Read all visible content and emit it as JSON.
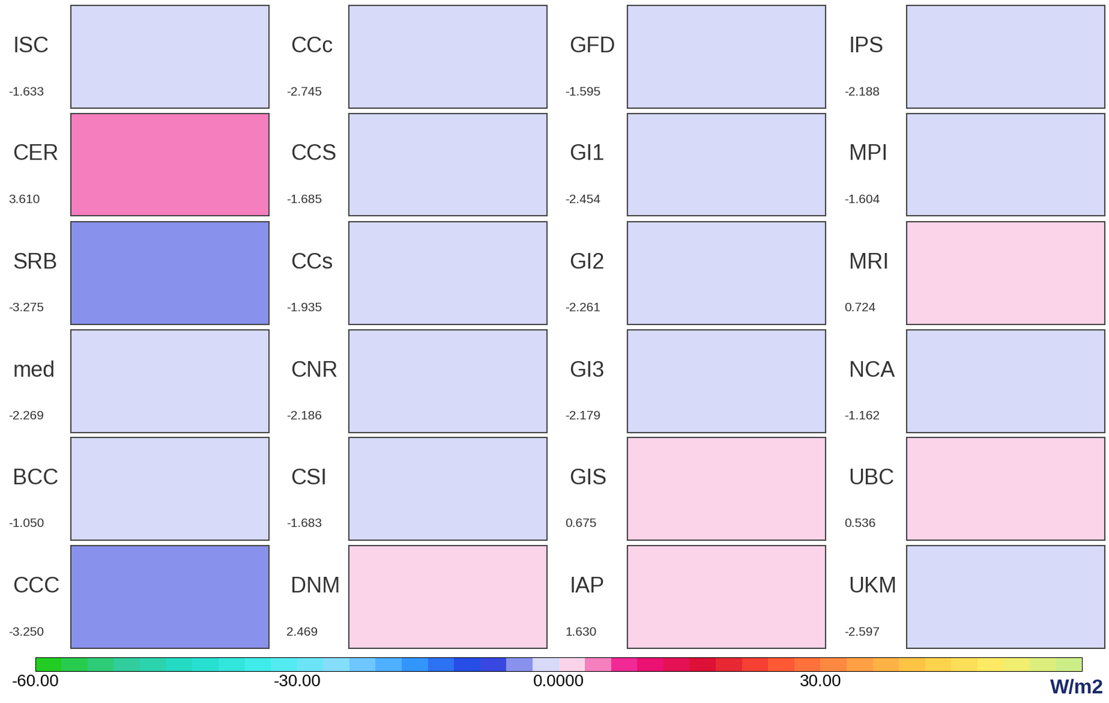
{
  "chart_data": {
    "type": "heatmap",
    "categories": [
      "ISC",
      "CER",
      "SRB",
      "med",
      "BCC",
      "CCC",
      "CCc",
      "CCS",
      "CCs",
      "CNR",
      "CSI",
      "DNM",
      "GFD",
      "GI1",
      "GI2",
      "GI3",
      "GIS",
      "IAP",
      "IPS",
      "MPI",
      "MRI",
      "NCA",
      "UBC",
      "UKM"
    ],
    "values": [
      -1.633,
      3.61,
      -3.275,
      -2.269,
      -1.05,
      -3.25,
      -2.745,
      -1.685,
      -1.935,
      -2.186,
      -1.683,
      2.469,
      -1.595,
      -2.454,
      -2.261,
      -2.179,
      0.675,
      1.63,
      -2.188,
      -1.604,
      0.724,
      -1.162,
      0.536,
      -2.597
    ],
    "value_labels": [
      "-1.633",
      "3.610",
      "-3.275",
      "-2.269",
      "-1.050",
      "-3.250",
      "-2.745",
      "-1.685",
      "-1.935",
      "-2.186",
      "-1.683",
      "2.469",
      "-1.595",
      "-2.454",
      "-2.261",
      "-2.179",
      "0.675",
      "1.630",
      "-2.188",
      "-1.604",
      "0.724",
      "-1.162",
      "0.536",
      "-2.597"
    ],
    "tick_labels": false,
    "colorbar": {
      "range": [
        -60,
        60
      ],
      "ticks": [
        {
          "value": -60,
          "label": "-60.00"
        },
        {
          "value": -30,
          "label": "-30.00"
        },
        {
          "value": 0,
          "label": "0.0000"
        },
        {
          "value": 30,
          "label": "30.00"
        }
      ],
      "label": "W/m2"
    }
  }
}
